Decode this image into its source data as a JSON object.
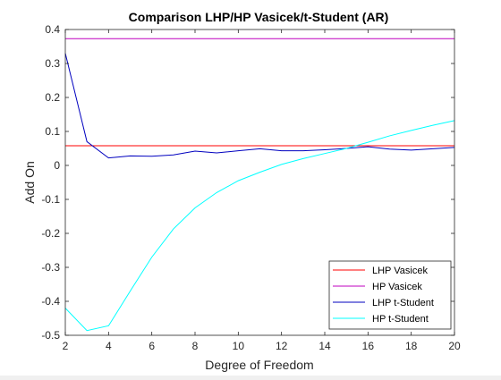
{
  "chart_data": {
    "type": "line",
    "title": "Comparison LHP/HP Vasicek/t-Student (AR)",
    "xlabel": "Degree of Freedom",
    "ylabel": "Add On",
    "xlim": [
      2,
      20
    ],
    "ylim": [
      -0.5,
      0.4
    ],
    "xticks": [
      2,
      4,
      6,
      8,
      10,
      12,
      14,
      16,
      18,
      20
    ],
    "yticks": [
      -0.5,
      -0.4,
      -0.3,
      -0.2,
      -0.1,
      0,
      0.1,
      0.2,
      0.3,
      0.4
    ],
    "xtick_labels": [
      "2",
      "4",
      "6",
      "8",
      "10",
      "12",
      "14",
      "16",
      "18",
      "20"
    ],
    "ytick_labels": [
      "-0.5",
      "-0.4",
      "-0.3",
      "-0.2",
      "-0.1",
      "0",
      "0.1",
      "0.2",
      "0.3",
      "0.4"
    ],
    "grid": false,
    "legend_position": "bottom-right",
    "x": [
      2,
      3,
      4,
      5,
      6,
      7,
      8,
      9,
      10,
      11,
      12,
      13,
      14,
      15,
      16,
      17,
      18,
      19,
      20
    ],
    "series": [
      {
        "name": "LHP Vasicek",
        "color": "#ff0000",
        "values": [
          0.058,
          0.058,
          0.058,
          0.058,
          0.058,
          0.058,
          0.058,
          0.058,
          0.058,
          0.058,
          0.058,
          0.058,
          0.058,
          0.058,
          0.058,
          0.058,
          0.058,
          0.058,
          0.058
        ]
      },
      {
        "name": "HP Vasicek",
        "color": "#bf00bf",
        "values": [
          0.373,
          0.373,
          0.373,
          0.373,
          0.373,
          0.373,
          0.373,
          0.373,
          0.373,
          0.373,
          0.373,
          0.373,
          0.373,
          0.373,
          0.373,
          0.373,
          0.373,
          0.373,
          0.373
        ]
      },
      {
        "name": "LHP t-Student",
        "color": "#0000bf",
        "values": [
          0.33,
          0.07,
          0.022,
          0.028,
          0.027,
          0.031,
          0.042,
          0.037,
          0.043,
          0.049,
          0.043,
          0.043,
          0.046,
          0.05,
          0.055,
          0.048,
          0.045,
          0.049,
          0.053
        ]
      },
      {
        "name": "HP t-Student",
        "color": "#00ffff",
        "values": [
          -0.42,
          -0.486,
          -0.472,
          -0.37,
          -0.27,
          -0.187,
          -0.125,
          -0.08,
          -0.045,
          -0.02,
          0.003,
          0.02,
          0.035,
          0.05,
          0.068,
          0.087,
          0.103,
          0.118,
          0.132
        ]
      }
    ]
  }
}
